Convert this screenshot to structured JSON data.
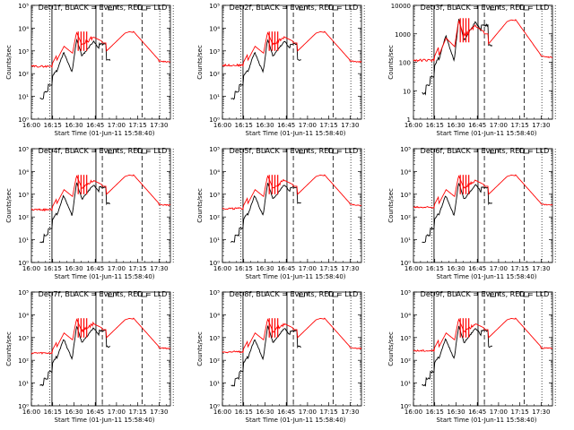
{
  "chart_data": [
    {
      "type": "line",
      "title": "Det 1f, BLACK = Events, RED = LLD",
      "xlabel": "Start Time (01-Jun-11 15:58:40)",
      "ylabel": "Counts/sec",
      "yscale": "log",
      "ylim": [
        1,
        100000
      ],
      "yticks": [
        "10⁰",
        "10¹",
        "10²",
        "10³",
        "10⁴",
        "10⁵"
      ],
      "xlim": [
        "16:00",
        "17:38"
      ],
      "xticks": [
        "16:00",
        "16:15",
        "16:30",
        "16:45",
        "17:00",
        "17:15",
        "17:30"
      ],
      "series": [
        {
          "color": "#000000"
        },
        {
          "color": "#ff0000"
        }
      ]
    },
    {
      "type": "line",
      "title": "Det 2f, BLACK = Events, RED = LLD",
      "xlabel": "Start Time (01-Jun-11 15:58:40)",
      "ylabel": "Counts/sec",
      "yscale": "log",
      "ylim": [
        1,
        100000
      ],
      "yticks": [
        "10⁰",
        "10¹",
        "10²",
        "10³",
        "10⁴",
        "10⁵"
      ],
      "xlim": [
        "16:00",
        "17:38"
      ],
      "xticks": [
        "16:00",
        "16:15",
        "16:30",
        "16:45",
        "17:00",
        "17:15",
        "17:30"
      ],
      "series": [
        {
          "color": "#000000"
        },
        {
          "color": "#ff0000"
        }
      ]
    },
    {
      "type": "line",
      "title": "Det 3f, BLACK = Events, RED = LLD",
      "xlabel": "Start Time (01-Jun-11 15:58:40)",
      "ylabel": "Counts/sec",
      "yscale": "log",
      "ylim": [
        1,
        10000
      ],
      "yticks": [
        "1",
        "10",
        "100",
        "1000",
        "10000"
      ],
      "xlim": [
        "16:00",
        "17:38"
      ],
      "xticks": [
        "16:00",
        "16:15",
        "16:30",
        "16:45",
        "17:00",
        "17:15",
        "17:30"
      ],
      "series": [
        {
          "color": "#000000"
        },
        {
          "color": "#ff0000"
        }
      ]
    },
    {
      "type": "line",
      "title": "Det 4f, BLACK = Events, RED = LLD",
      "xlabel": "Start Time (01-Jun-11 15:58:40)",
      "ylabel": "Counts/sec",
      "yscale": "log",
      "ylim": [
        1,
        100000
      ],
      "yticks": [
        "10⁰",
        "10¹",
        "10²",
        "10³",
        "10⁴",
        "10⁵"
      ],
      "xlim": [
        "16:00",
        "17:38"
      ],
      "xticks": [
        "16:00",
        "16:15",
        "16:30",
        "16:45",
        "17:00",
        "17:15",
        "17:30"
      ],
      "series": [
        {
          "color": "#000000"
        },
        {
          "color": "#ff0000"
        }
      ]
    },
    {
      "type": "line",
      "title": "Det 5f, BLACK = Events, RED = LLD",
      "xlabel": "Start Time (01-Jun-11 15:58:40)",
      "ylabel": "Counts/sec",
      "yscale": "log",
      "ylim": [
        1,
        100000
      ],
      "yticks": [
        "10⁰",
        "10¹",
        "10²",
        "10³",
        "10⁴",
        "10⁵"
      ],
      "xlim": [
        "16:00",
        "17:38"
      ],
      "xticks": [
        "16:00",
        "16:15",
        "16:30",
        "16:45",
        "17:00",
        "17:15",
        "17:30"
      ],
      "series": [
        {
          "color": "#000000"
        },
        {
          "color": "#ff0000"
        }
      ]
    },
    {
      "type": "line",
      "title": "Det 6f, BLACK = Events, RED = LLD",
      "xlabel": "Start Time (01-Jun-11 15:58:40)",
      "ylabel": "Counts/sec",
      "yscale": "log",
      "ylim": [
        1,
        100000
      ],
      "yticks": [
        "10⁰",
        "10¹",
        "10²",
        "10³",
        "10⁴",
        "10⁵"
      ],
      "xlim": [
        "16:00",
        "17:38"
      ],
      "xticks": [
        "16:00",
        "16:15",
        "16:30",
        "16:45",
        "17:00",
        "17:15",
        "17:30"
      ],
      "series": [
        {
          "color": "#000000"
        },
        {
          "color": "#ff0000"
        }
      ]
    },
    {
      "type": "line",
      "title": "Det 7f, BLACK = Events, RED = LLD",
      "xlabel": "Start Time (01-Jun-11 15:58:40)",
      "ylabel": "Counts/sec",
      "yscale": "log",
      "ylim": [
        1,
        100000
      ],
      "yticks": [
        "10⁰",
        "10¹",
        "10²",
        "10³",
        "10⁴",
        "10⁵"
      ],
      "xlim": [
        "16:00",
        "17:38"
      ],
      "xticks": [
        "16:00",
        "16:15",
        "16:30",
        "16:45",
        "17:00",
        "17:15",
        "17:30"
      ],
      "series": [
        {
          "color": "#000000"
        },
        {
          "color": "#ff0000"
        }
      ]
    },
    {
      "type": "line",
      "title": "Det 8f, BLACK = Events, RED = LLD",
      "xlabel": "Start Time (01-Jun-11 15:58:40)",
      "ylabel": "Counts/sec",
      "yscale": "log",
      "ylim": [
        1,
        100000
      ],
      "yticks": [
        "10⁰",
        "10¹",
        "10²",
        "10³",
        "10⁴",
        "10⁵"
      ],
      "xlim": [
        "16:00",
        "17:38"
      ],
      "xticks": [
        "16:00",
        "16:15",
        "16:30",
        "16:45",
        "17:00",
        "17:15",
        "17:30"
      ],
      "series": [
        {
          "color": "#000000"
        },
        {
          "color": "#ff0000"
        }
      ]
    },
    {
      "type": "line",
      "title": "Det 9f, BLACK = Events, RED = LLD",
      "xlabel": "Start Time (01-Jun-11 15:58:40)",
      "ylabel": "Counts/sec",
      "yscale": "log",
      "ylim": [
        1,
        100000
      ],
      "yticks": [
        "10⁰",
        "10¹",
        "10²",
        "10³",
        "10⁴",
        "10⁵"
      ],
      "xlim": [
        "16:00",
        "17:38"
      ],
      "xticks": [
        "16:00",
        "16:15",
        "16:30",
        "16:45",
        "17:00",
        "17:15",
        "17:30"
      ],
      "series": [
        {
          "color": "#000000"
        },
        {
          "color": "#ff0000"
        }
      ]
    }
  ]
}
